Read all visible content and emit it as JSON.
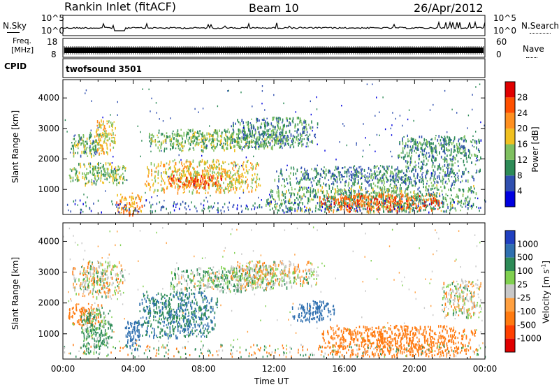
{
  "header": {
    "station": "Rankin Inlet (fitACF)",
    "beam": "Beam 10",
    "date": "26/Apr/2012"
  },
  "noise_panel": {
    "left_label": "N.Sky",
    "right_label": "N.Search",
    "tick_top": "10^5",
    "tick_bottom": "10^0"
  },
  "freq_panel": {
    "label_line1": "Freq.",
    "label_line2": "[MHz]",
    "tick_top": "18",
    "tick_bottom": "8",
    "right_label": "Nave",
    "right_tick_top": "60",
    "right_tick_bottom": "0"
  },
  "cpid_panel": {
    "label": "CPID",
    "value": "twofsound 3501"
  },
  "colors": {
    "power": [
      "#0000e0",
      "#3050b0",
      "#2e8b57",
      "#7fc060",
      "#f0c020",
      "#ff9020",
      "#ff5000",
      "#e00000"
    ],
    "velocity": [
      "#2040c0",
      "#3070b0",
      "#2e8b57",
      "#80d050",
      "#c8c8c8",
      "#ffa040",
      "#ff7a10",
      "#ff4000",
      "#e00000"
    ]
  },
  "chart_data": [
    {
      "type": "heatmap",
      "name": "power",
      "xlabel": "",
      "ylabel": "Slant Range [km]",
      "x_ticks": [
        "00:00",
        "04:00",
        "08:00",
        "12:00",
        "16:00",
        "20:00",
        "00:00"
      ],
      "x_range_hours": [
        0,
        24
      ],
      "y_ticks": [
        1000,
        2000,
        3000,
        4000
      ],
      "ylim": [
        180,
        4600
      ],
      "colorbar_label": "Power [dB]",
      "colorbar_ticks": [
        4,
        8,
        12,
        16,
        20,
        24,
        28
      ],
      "colorbar_range": [
        0,
        32
      ],
      "regions": [
        {
          "t": [
            0.3,
            3.8
          ],
          "r": [
            1200,
            1900
          ],
          "v": 14
        },
        {
          "t": [
            0.4,
            2.3
          ],
          "r": [
            2100,
            2900
          ],
          "v": 12
        },
        {
          "t": [
            1.8,
            3.0
          ],
          "r": [
            2200,
            3300
          ],
          "v": 18
        },
        {
          "t": [
            3.0,
            4.5
          ],
          "r": [
            200,
            900
          ],
          "v": 22
        },
        {
          "t": [
            4.6,
            11.2
          ],
          "r": [
            900,
            2000
          ],
          "v": 18
        },
        {
          "t": [
            6.0,
            9.0
          ],
          "r": [
            1100,
            1500
          ],
          "v": 26
        },
        {
          "t": [
            4.8,
            12.5
          ],
          "r": [
            2300,
            3000
          ],
          "v": 13
        },
        {
          "t": [
            9.5,
            14.5
          ],
          "r": [
            2400,
            3400
          ],
          "v": 10
        },
        {
          "t": [
            11.5,
            23.5
          ],
          "r": [
            300,
            1200
          ],
          "v": 12
        },
        {
          "t": [
            14.5,
            21.5
          ],
          "r": [
            300,
            900
          ],
          "v": 25
        },
        {
          "t": [
            12.0,
            23.8
          ],
          "r": [
            1200,
            1800
          ],
          "v": 9
        },
        {
          "t": [
            19.0,
            23.8
          ],
          "r": [
            1800,
            2800
          ],
          "v": 10
        }
      ]
    },
    {
      "type": "heatmap",
      "name": "velocity",
      "xlabel": "Time UT",
      "ylabel": "Slant Range [km]",
      "x_ticks": [
        "00:00",
        "04:00",
        "08:00",
        "12:00",
        "16:00",
        "20:00",
        "00:00"
      ],
      "x_range_hours": [
        0,
        24
      ],
      "y_ticks": [
        1000,
        2000,
        3000,
        4000
      ],
      "ylim": [
        180,
        4600
      ],
      "colorbar_label": "Velocity [m s^-1]",
      "colorbar_ticks": [
        "1000",
        "500",
        "100",
        "25",
        "-25",
        "-100",
        "-500",
        "-1000"
      ],
      "regions": [
        {
          "t": [
            0.3,
            2.2
          ],
          "r": [
            1300,
            2000
          ],
          "v": -150
        },
        {
          "t": [
            1.0,
            2.8
          ],
          "r": [
            400,
            1900
          ],
          "v": 90
        },
        {
          "t": [
            0.5,
            3.5
          ],
          "r": [
            2200,
            3400
          ],
          "v": 0
        },
        {
          "t": [
            4.2,
            8.8
          ],
          "r": [
            900,
            2400
          ],
          "v": 300
        },
        {
          "t": [
            3.5,
            4.5
          ],
          "r": [
            500,
            1500
          ],
          "v": 600
        },
        {
          "t": [
            6.0,
            12.0
          ],
          "r": [
            2400,
            3200
          ],
          "v": 40
        },
        {
          "t": [
            9.5,
            14.5
          ],
          "r": [
            2500,
            3400
          ],
          "v": 0
        },
        {
          "t": [
            13.0,
            15.5
          ],
          "r": [
            1400,
            2100
          ],
          "v": 600
        },
        {
          "t": [
            14.5,
            23.5
          ],
          "r": [
            300,
            1300
          ],
          "v": -200
        },
        {
          "t": [
            21.5,
            23.8
          ],
          "r": [
            1500,
            2800
          ],
          "v": 0
        }
      ]
    }
  ]
}
